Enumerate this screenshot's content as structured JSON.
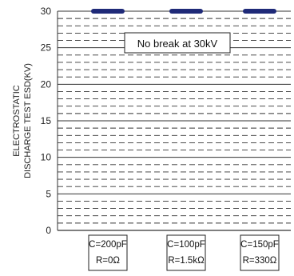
{
  "chart_data": {
    "type": "scatter",
    "title": "",
    "ylabel_lines": [
      "ELECTROSTATIC",
      "DISCHARGE TEST ESD(KV)"
    ],
    "xlabel": "",
    "ylim": [
      0,
      30
    ],
    "y_ticks": [
      0,
      5,
      10,
      15,
      20,
      25,
      30
    ],
    "grid": {
      "major": true,
      "minor_dashed": true,
      "minor_step": 1
    },
    "categories": [
      {
        "line1": "C=200pF",
        "line2": "R=0Ω"
      },
      {
        "line1": "C=100pF",
        "line2": "R=1.5kΩ"
      },
      {
        "line1": "C=150pF",
        "line2": "R=330Ω"
      }
    ],
    "series": [
      {
        "values": [
          30,
          30,
          30
        ],
        "marker": "thick-bar"
      }
    ],
    "annotations": [
      {
        "text": "No break at 30kV",
        "x": 1,
        "y": 26
      }
    ],
    "colors": {
      "series": "#1f2a78",
      "grid": "#333333",
      "text": "#222222"
    }
  }
}
